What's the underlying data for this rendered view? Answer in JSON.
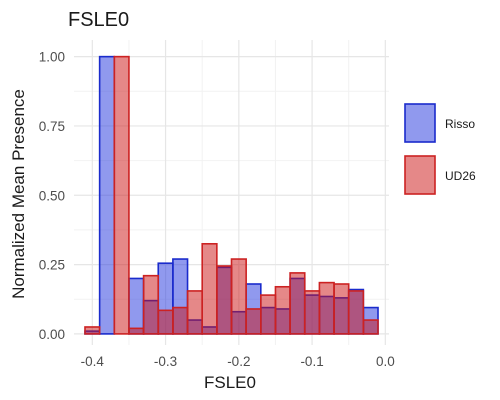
{
  "chart_data": {
    "type": "bar",
    "title": "FSLE0",
    "xlabel": "FSLE0",
    "ylabel": "Normalized Mean Presence",
    "xlim": [
      -0.425,
      0.005
    ],
    "ylim": [
      -0.04,
      1.06
    ],
    "xticks": [
      -0.4,
      -0.3,
      -0.2,
      -0.1,
      0.0
    ],
    "xtick_labels": [
      "-0.4",
      "-0.3",
      "-0.2",
      "-0.1",
      "0.0"
    ],
    "yticks": [
      0.0,
      0.25,
      0.5,
      0.75,
      1.0
    ],
    "ytick_labels": [
      "0.00",
      "0.25",
      "0.50",
      "0.75",
      "1.00"
    ],
    "grid": true,
    "legend_position": "right",
    "bin_width": 0.02,
    "series": [
      {
        "name": "Risso",
        "fill": "#2233dd",
        "stroke": "#1a2bcc",
        "opacity": 0.5,
        "bins": [
          {
            "x": -0.4,
            "y": 0.01
          },
          {
            "x": -0.38,
            "y": 1.0
          },
          {
            "x": -0.36,
            "y": 0.0
          },
          {
            "x": -0.34,
            "y": 0.2
          },
          {
            "x": -0.32,
            "y": 0.12
          },
          {
            "x": -0.3,
            "y": 0.255
          },
          {
            "x": -0.28,
            "y": 0.27
          },
          {
            "x": -0.26,
            "y": 0.05
          },
          {
            "x": -0.24,
            "y": 0.025
          },
          {
            "x": -0.22,
            "y": 0.24
          },
          {
            "x": -0.2,
            "y": 0.08
          },
          {
            "x": -0.18,
            "y": 0.18
          },
          {
            "x": -0.16,
            "y": 0.095
          },
          {
            "x": -0.14,
            "y": 0.09
          },
          {
            "x": -0.12,
            "y": 0.2
          },
          {
            "x": -0.1,
            "y": 0.14
          },
          {
            "x": -0.08,
            "y": 0.135
          },
          {
            "x": -0.06,
            "y": 0.13
          },
          {
            "x": -0.04,
            "y": 0.16
          },
          {
            "x": -0.02,
            "y": 0.095
          }
        ]
      },
      {
        "name": "UD26",
        "fill": "#cc1111",
        "stroke": "#cc2222",
        "opacity": 0.5,
        "bins": [
          {
            "x": -0.4,
            "y": 0.025
          },
          {
            "x": -0.38,
            "y": 0.0
          },
          {
            "x": -0.36,
            "y": 1.0
          },
          {
            "x": -0.34,
            "y": 0.02
          },
          {
            "x": -0.32,
            "y": 0.21
          },
          {
            "x": -0.3,
            "y": 0.085
          },
          {
            "x": -0.28,
            "y": 0.095
          },
          {
            "x": -0.26,
            "y": 0.155
          },
          {
            "x": -0.24,
            "y": 0.325
          },
          {
            "x": -0.22,
            "y": 0.245
          },
          {
            "x": -0.2,
            "y": 0.27
          },
          {
            "x": -0.18,
            "y": 0.09
          },
          {
            "x": -0.16,
            "y": 0.14
          },
          {
            "x": -0.14,
            "y": 0.17
          },
          {
            "x": -0.12,
            "y": 0.22
          },
          {
            "x": -0.1,
            "y": 0.155
          },
          {
            "x": -0.08,
            "y": 0.185
          },
          {
            "x": -0.06,
            "y": 0.18
          },
          {
            "x": -0.04,
            "y": 0.155
          },
          {
            "x": -0.02,
            "y": 0.05
          }
        ]
      }
    ]
  }
}
